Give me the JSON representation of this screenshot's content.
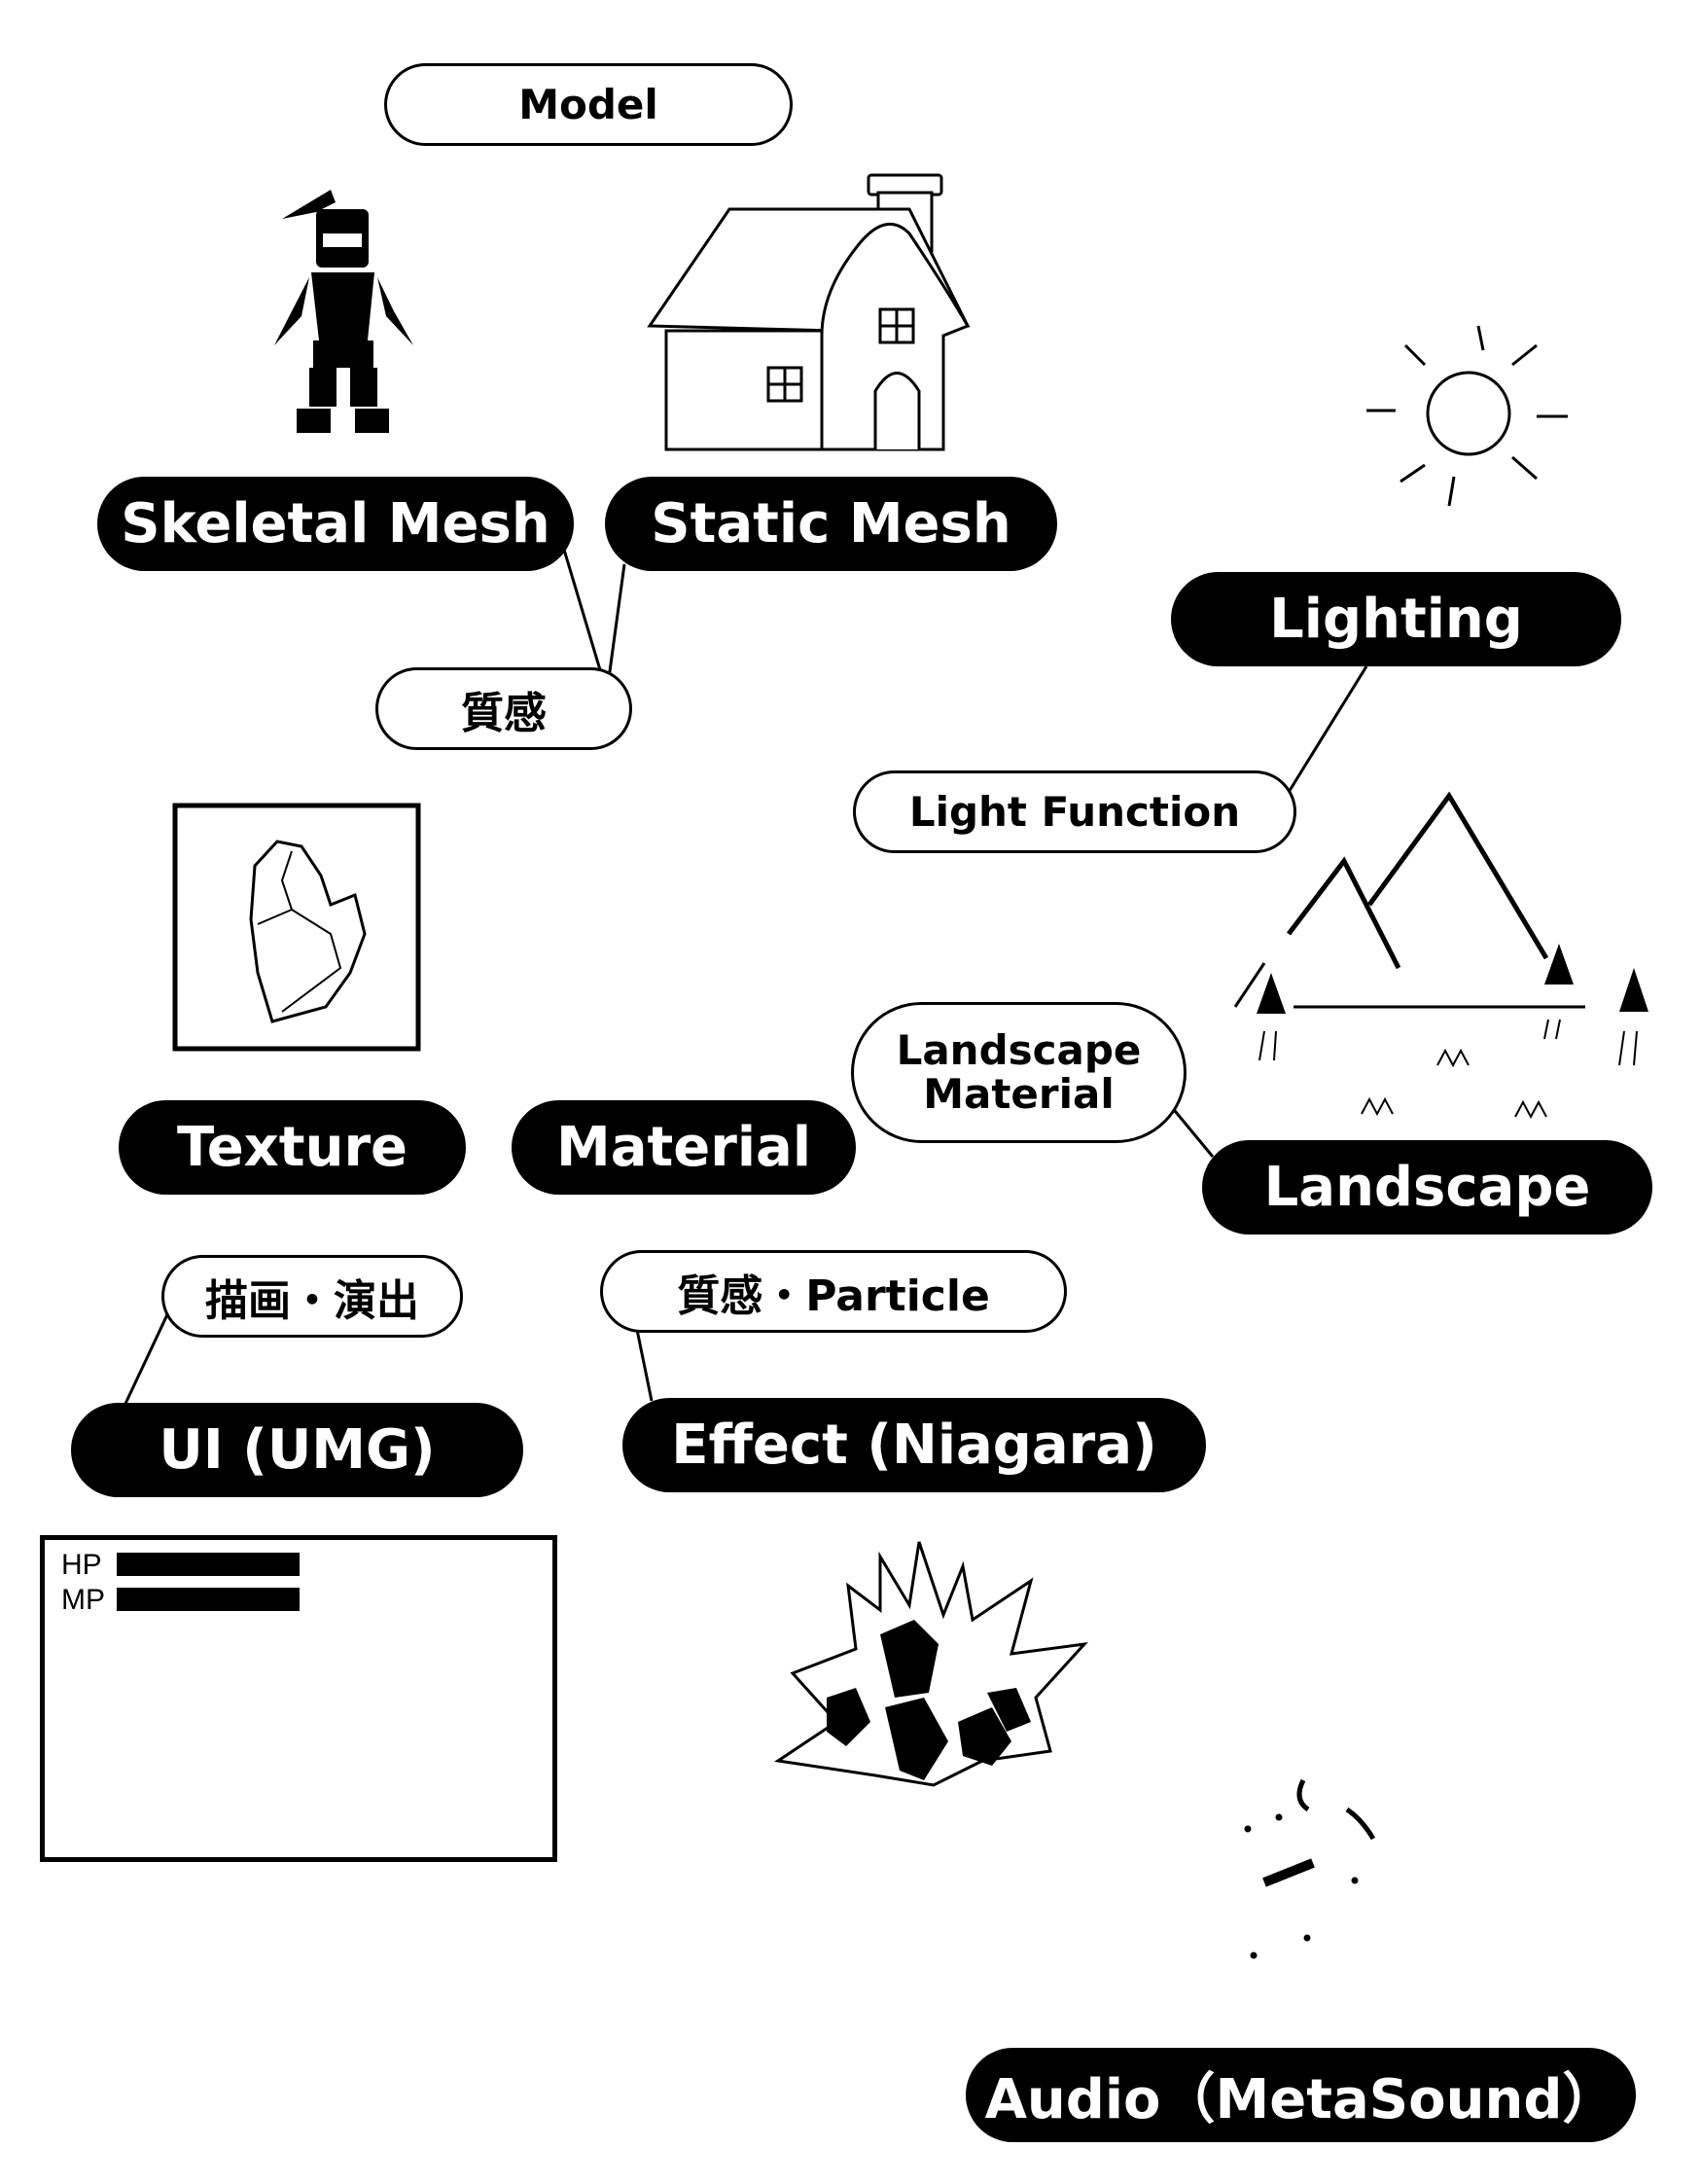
{
  "nodes": {
    "model": "Model",
    "skeletal_mesh": "Skeletal Mesh",
    "static_mesh": "Static Mesh",
    "shitsukan": "質感",
    "lighting": "Lighting",
    "light_function": "Light Function",
    "texture": "Texture",
    "material": "Material",
    "landscape_material_line1": "Landscape",
    "landscape_material_line2": "Material",
    "landscape": "Landscape",
    "byouga_enshutsu": "描画・演出",
    "shitsukan_particle": "質感・Particle",
    "ui_umg": "UI (UMG)",
    "effect_niagara": "Effect (Niagara)",
    "audio_metasound": "Audio（MetaSound）"
  },
  "hud": {
    "hp_label": "HP",
    "mp_label": "MP"
  },
  "colors": {
    "ink": "#000000",
    "paper": "#ffffff"
  }
}
